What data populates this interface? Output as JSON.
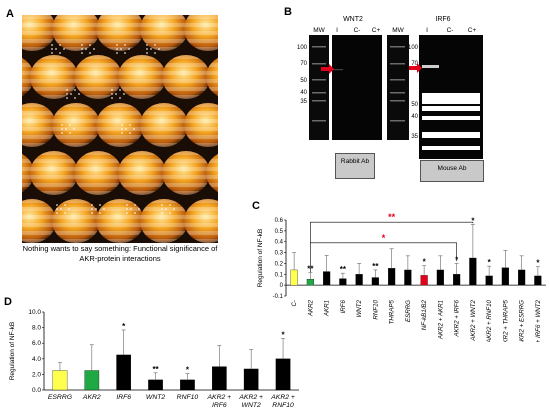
{
  "panels": {
    "a": {
      "letter": "A",
      "caption": "Nothing wants to say something: Functional significance of AKR-protein interactions",
      "dot_text": "NOTHING"
    },
    "b": {
      "letter": "B",
      "blot1": {
        "title": "WNT2",
        "lanes": [
          "MW",
          "I",
          "C-",
          "C+"
        ],
        "antibody": "Rabbit Ab"
      },
      "blot2": {
        "title": "IRF6",
        "lanes": [
          "MW",
          "I",
          "C-",
          "C+"
        ],
        "antibody": "Mouse Ab"
      },
      "mw_markers_1": [
        "100",
        "70",
        "50",
        "40",
        "35"
      ],
      "mw_markers_2": [
        "100",
        "70",
        "50",
        "40",
        "35"
      ],
      "arrow_color": "#e3001b"
    },
    "c": {
      "letter": "C",
      "sig_red_top": "**",
      "sig_red_mid": "*"
    },
    "d": {
      "letter": "D"
    }
  },
  "colors": {
    "yellow": "#ffff4d",
    "green": "#1fa843",
    "red": "#e3001b",
    "black": "#000000",
    "sig_red": "#e3001b"
  },
  "chart_data": [
    {
      "type": "bar",
      "panel": "C",
      "ylabel": "Regulation of NF-kB",
      "ylim": [
        -0.1,
        0.6
      ],
      "yticks": [
        "-0.1",
        "0",
        "0.1",
        "0.2",
        "0.3",
        "0.4",
        "0.5",
        "0.6"
      ],
      "categories": [
        "C-",
        "AKR2",
        "AKR1",
        "IRF6",
        "WNT2",
        "RNF10",
        "THRAP5",
        "ESRRG",
        "NF-kB1/B2",
        "AKR2 + AKR1",
        "AKR2 + IRF6",
        "AKR2 + WNT2",
        "AKR2 + RNF10",
        "AKR2 + THRAP5",
        "AKR2 + ESRRG",
        "AKR2 + IRF6 + WNT2"
      ],
      "values": [
        0.14,
        0.055,
        0.125,
        0.06,
        0.1,
        0.07,
        0.155,
        0.14,
        0.09,
        0.14,
        0.1,
        0.25,
        0.085,
        0.16,
        0.14,
        0.085
      ],
      "errors": [
        0.16,
        0.06,
        0.15,
        0.05,
        0.1,
        0.07,
        0.18,
        0.13,
        0.09,
        0.13,
        0.1,
        0.31,
        0.09,
        0.16,
        0.13,
        0.085
      ],
      "colors": [
        "yellow",
        "green",
        "black",
        "black",
        "black",
        "black",
        "black",
        "black",
        "red",
        "black",
        "black",
        "black",
        "black",
        "black",
        "black",
        "black"
      ],
      "significance": [
        "",
        "**",
        "",
        "**",
        "",
        "**",
        "",
        "",
        "*",
        "",
        "*",
        "*",
        "*",
        "",
        "",
        "*"
      ]
    },
    {
      "type": "bar",
      "panel": "D",
      "ylabel": "Regulation of NF-kB",
      "ylim": [
        0,
        10
      ],
      "yticks": [
        "0.0",
        "2.0",
        "4.0",
        "6.0",
        "8.0",
        "10.0"
      ],
      "categories": [
        "ESRRG",
        "AKR2",
        "IRF6",
        "WNT2",
        "RNF10",
        "AKR2 + IRF6",
        "AKR2 + WNT2",
        "AKR2 + RNF10"
      ],
      "values": [
        2.5,
        2.5,
        4.5,
        1.3,
        1.3,
        3.0,
        2.7,
        4.0
      ],
      "errors": [
        1.0,
        3.3,
        3.2,
        0.9,
        0.8,
        2.7,
        2.5,
        2.6
      ],
      "colors": [
        "yellow",
        "green",
        "black",
        "black",
        "black",
        "black",
        "black",
        "black"
      ],
      "significance": [
        "",
        "",
        "*",
        "**",
        "*",
        "",
        "",
        "*"
      ]
    }
  ]
}
